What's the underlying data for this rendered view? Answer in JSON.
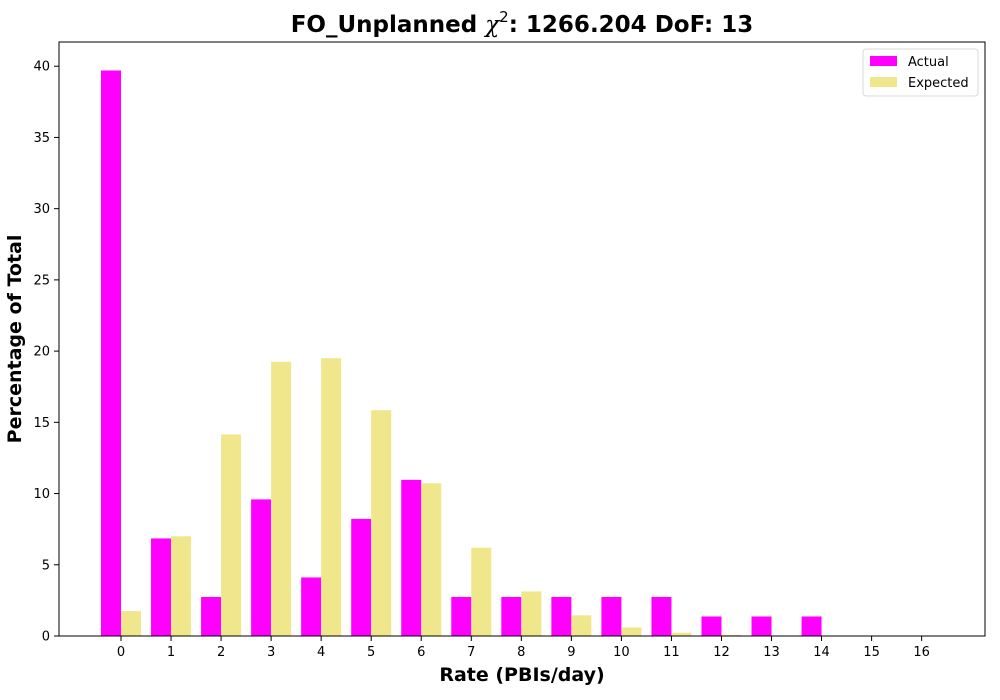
{
  "chart_data": {
    "type": "bar",
    "title": {
      "prefix": "FO_Unplanned ",
      "chi_symbol": "χ",
      "chi_sup": "2",
      "suffix": ": 1266.204 DoF: 13"
    },
    "xlabel": "Rate (PBIs/day)",
    "ylabel": "Percentage of Total",
    "categories": [
      "0",
      "1",
      "2",
      "3",
      "4",
      "5",
      "6",
      "7",
      "8",
      "9",
      "10",
      "11",
      "12",
      "13",
      "14",
      "15",
      "16"
    ],
    "ylim": [
      0,
      41.7
    ],
    "yticks": [
      0,
      5,
      10,
      15,
      20,
      25,
      30,
      35,
      40
    ],
    "grid": false,
    "legend_position": "top-right",
    "series": [
      {
        "name": "Actual",
        "color": "#ff00ff",
        "values": [
          39.7,
          6.85,
          2.74,
          9.59,
          4.11,
          8.22,
          10.96,
          2.74,
          2.74,
          2.74,
          2.74,
          2.74,
          1.37,
          1.37,
          1.37,
          0,
          0
        ]
      },
      {
        "name": "Expected",
        "color": "#f0e68c",
        "values": [
          1.75,
          7.0,
          14.15,
          19.25,
          19.5,
          15.85,
          10.72,
          6.2,
          3.13,
          1.45,
          0.6,
          0.23,
          0.08,
          0.03,
          0.01,
          0,
          0
        ]
      }
    ]
  }
}
